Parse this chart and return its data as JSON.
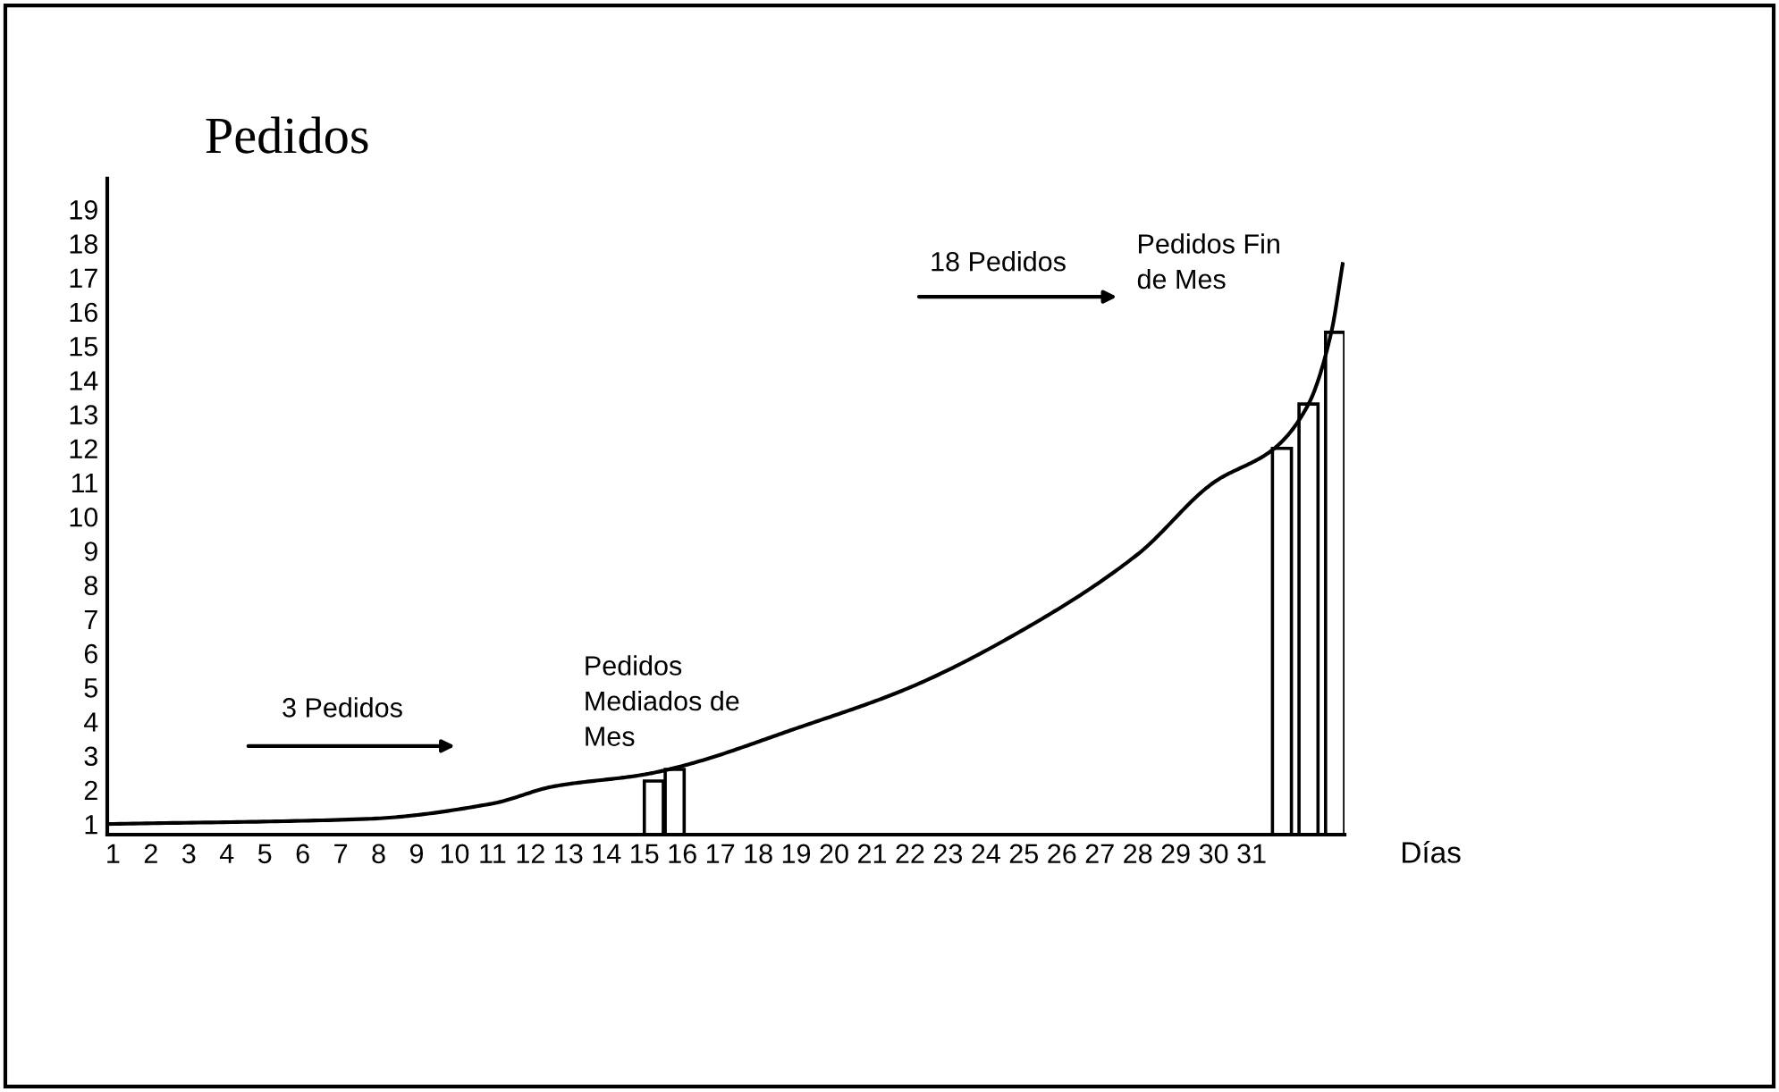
{
  "chart_data": {
    "type": "bar",
    "title": "Pedidos",
    "xlabel": "Días",
    "xlim": [
      0.85,
      33.45
    ],
    "ylim": [
      0.69,
      19.9
    ],
    "xticks": [
      1,
      2,
      3,
      4,
      5,
      6,
      7,
      8,
      9,
      10,
      11,
      12,
      13,
      14,
      15,
      16,
      17,
      18,
      19,
      20,
      21,
      22,
      23,
      24,
      25,
      26,
      27,
      28,
      29,
      30,
      31
    ],
    "yticks": [
      1,
      2,
      3,
      4,
      5,
      6,
      7,
      8,
      9,
      10,
      11,
      12,
      13,
      14,
      15,
      16,
      17,
      18,
      19
    ],
    "grid": false,
    "series": [
      {
        "color": "#ffffff",
        "x": [
          15.25,
          15.8,
          31.8,
          32.5,
          33.2
        ],
        "values": [
          2.26,
          2.6,
          12.0,
          13.3,
          15.4
        ]
      },
      {
        "type": "line",
        "color": "#000000",
        "x": [
          0.85,
          7.7,
          11,
          12.6,
          15,
          16,
          19,
          22,
          25,
          28,
          30,
          31.6,
          32.5,
          33.1,
          33.4
        ],
        "values": [
          1.0,
          1.15,
          1.6,
          2.1,
          2.45,
          2.7,
          3.8,
          5.0,
          6.7,
          8.9,
          11.0,
          12.0,
          13.3,
          15.4,
          17.4
        ]
      }
    ],
    "annotations": [
      "3 Pedidos",
      "Pedidos\nMediados de\nMes",
      "18 Pedidos",
      "Pedidos Fin\nde Mes"
    ]
  }
}
